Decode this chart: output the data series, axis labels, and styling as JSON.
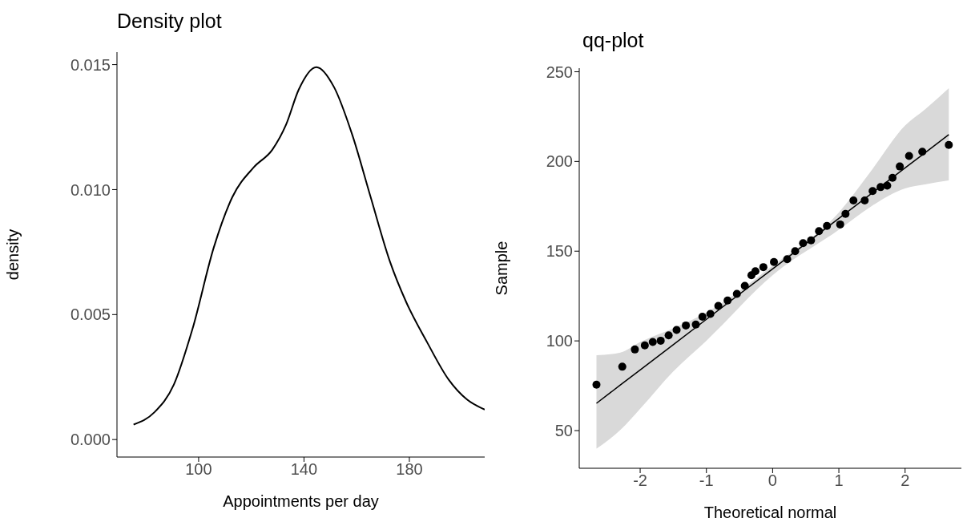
{
  "chart_data": [
    {
      "type": "area",
      "title": "Density plot",
      "xlabel": "Appointments per day",
      "ylabel": "density",
      "color": "#000000",
      "x": [
        75.3,
        83.3,
        90.6,
        97.6,
        105.8,
        112.8,
        121.0,
        128.0,
        133.2,
        138.0,
        144.7,
        151.4,
        158.3,
        165.3,
        172.7,
        178.8,
        186.7,
        194.9,
        201.9,
        208.6
      ],
      "values": [
        0.0006,
        0.0011,
        0.0022,
        0.0044,
        0.0077,
        0.0097,
        0.0109,
        0.0116,
        0.0126,
        0.014,
        0.0149,
        0.0141,
        0.0122,
        0.0097,
        0.0071,
        0.0055,
        0.0039,
        0.0024,
        0.0016,
        0.0012
      ],
      "xlim": [
        69,
        208.6
      ],
      "ylim": [
        -0.0007,
        0.0155
      ],
      "xticks": [
        100,
        140,
        180
      ],
      "yticks": [
        {
          "value": 0,
          "label": "0.000"
        },
        {
          "value": 0.005,
          "label": "0.005"
        },
        {
          "value": 0.01,
          "label": "0.010"
        },
        {
          "value": 0.015,
          "label": "0.015"
        }
      ]
    },
    {
      "type": "scatter",
      "title": "qq-plot",
      "xlabel": "Theoretical normal",
      "ylabel": "Sample",
      "marker": "circle",
      "xlim": [
        -2.92,
        2.85
      ],
      "ylim": [
        29,
        252
      ],
      "xticks": [
        -2,
        -1,
        0,
        1,
        2
      ],
      "yticks": [
        50,
        100,
        150,
        200,
        250
      ],
      "series": [
        {
          "type": "line",
          "marker": "none",
          "color": "#000000",
          "x": [
            -2.66,
            -2.3,
            -2,
            -1.5,
            -1,
            0,
            1,
            1.5,
            2,
            2.3,
            2.66
          ],
          "values": [
            65.2,
            75.4,
            83.8,
            97.9,
            112.0,
            140.1,
            168.3,
            182.3,
            196.4,
            204.8,
            215.0
          ],
          "lower": [
            39.9,
            50.3,
            62.2,
            83,
            100.1,
            136.6,
            161.9,
            175.3,
            185,
            187.2,
            189.4
          ],
          "upper": [
            92,
            93.5,
            99.4,
            107,
            115.8,
            141.8,
            171.6,
            195.4,
            220,
            229,
            240.8
          ]
        },
        {
          "color": "#000000",
          "x": [
            -2.66,
            -2.27,
            -2.08,
            -1.93,
            -1.81,
            -1.69,
            -1.57,
            -1.45,
            -1.31,
            -1.16,
            -1.06,
            -0.94,
            -0.82,
            -0.68,
            -0.54,
            -0.42,
            -0.32,
            -0.26,
            -0.14,
            0.02,
            0.22,
            0.34,
            0.46,
            0.58,
            0.7,
            0.82,
            1.02,
            1.1,
            1.22,
            1.39,
            1.51,
            1.63,
            1.73,
            1.81,
            1.92,
            2.06,
            2.26,
            2.66
          ],
          "values": [
            75.6,
            85.6,
            95.2,
            97.5,
            99.4,
            100.1,
            103.1,
            106.1,
            108.6,
            109.1,
            113.5,
            115,
            119.5,
            122.5,
            126.2,
            130.7,
            136.6,
            138.8,
            141.1,
            144,
            145.5,
            150,
            154.5,
            156,
            161.2,
            164.1,
            164.9,
            170.8,
            178.3,
            178.3,
            183.5,
            185.7,
            186.5,
            190.9,
            197.2,
            203.1,
            205.4,
            209.2
          ]
        }
      ]
    }
  ]
}
